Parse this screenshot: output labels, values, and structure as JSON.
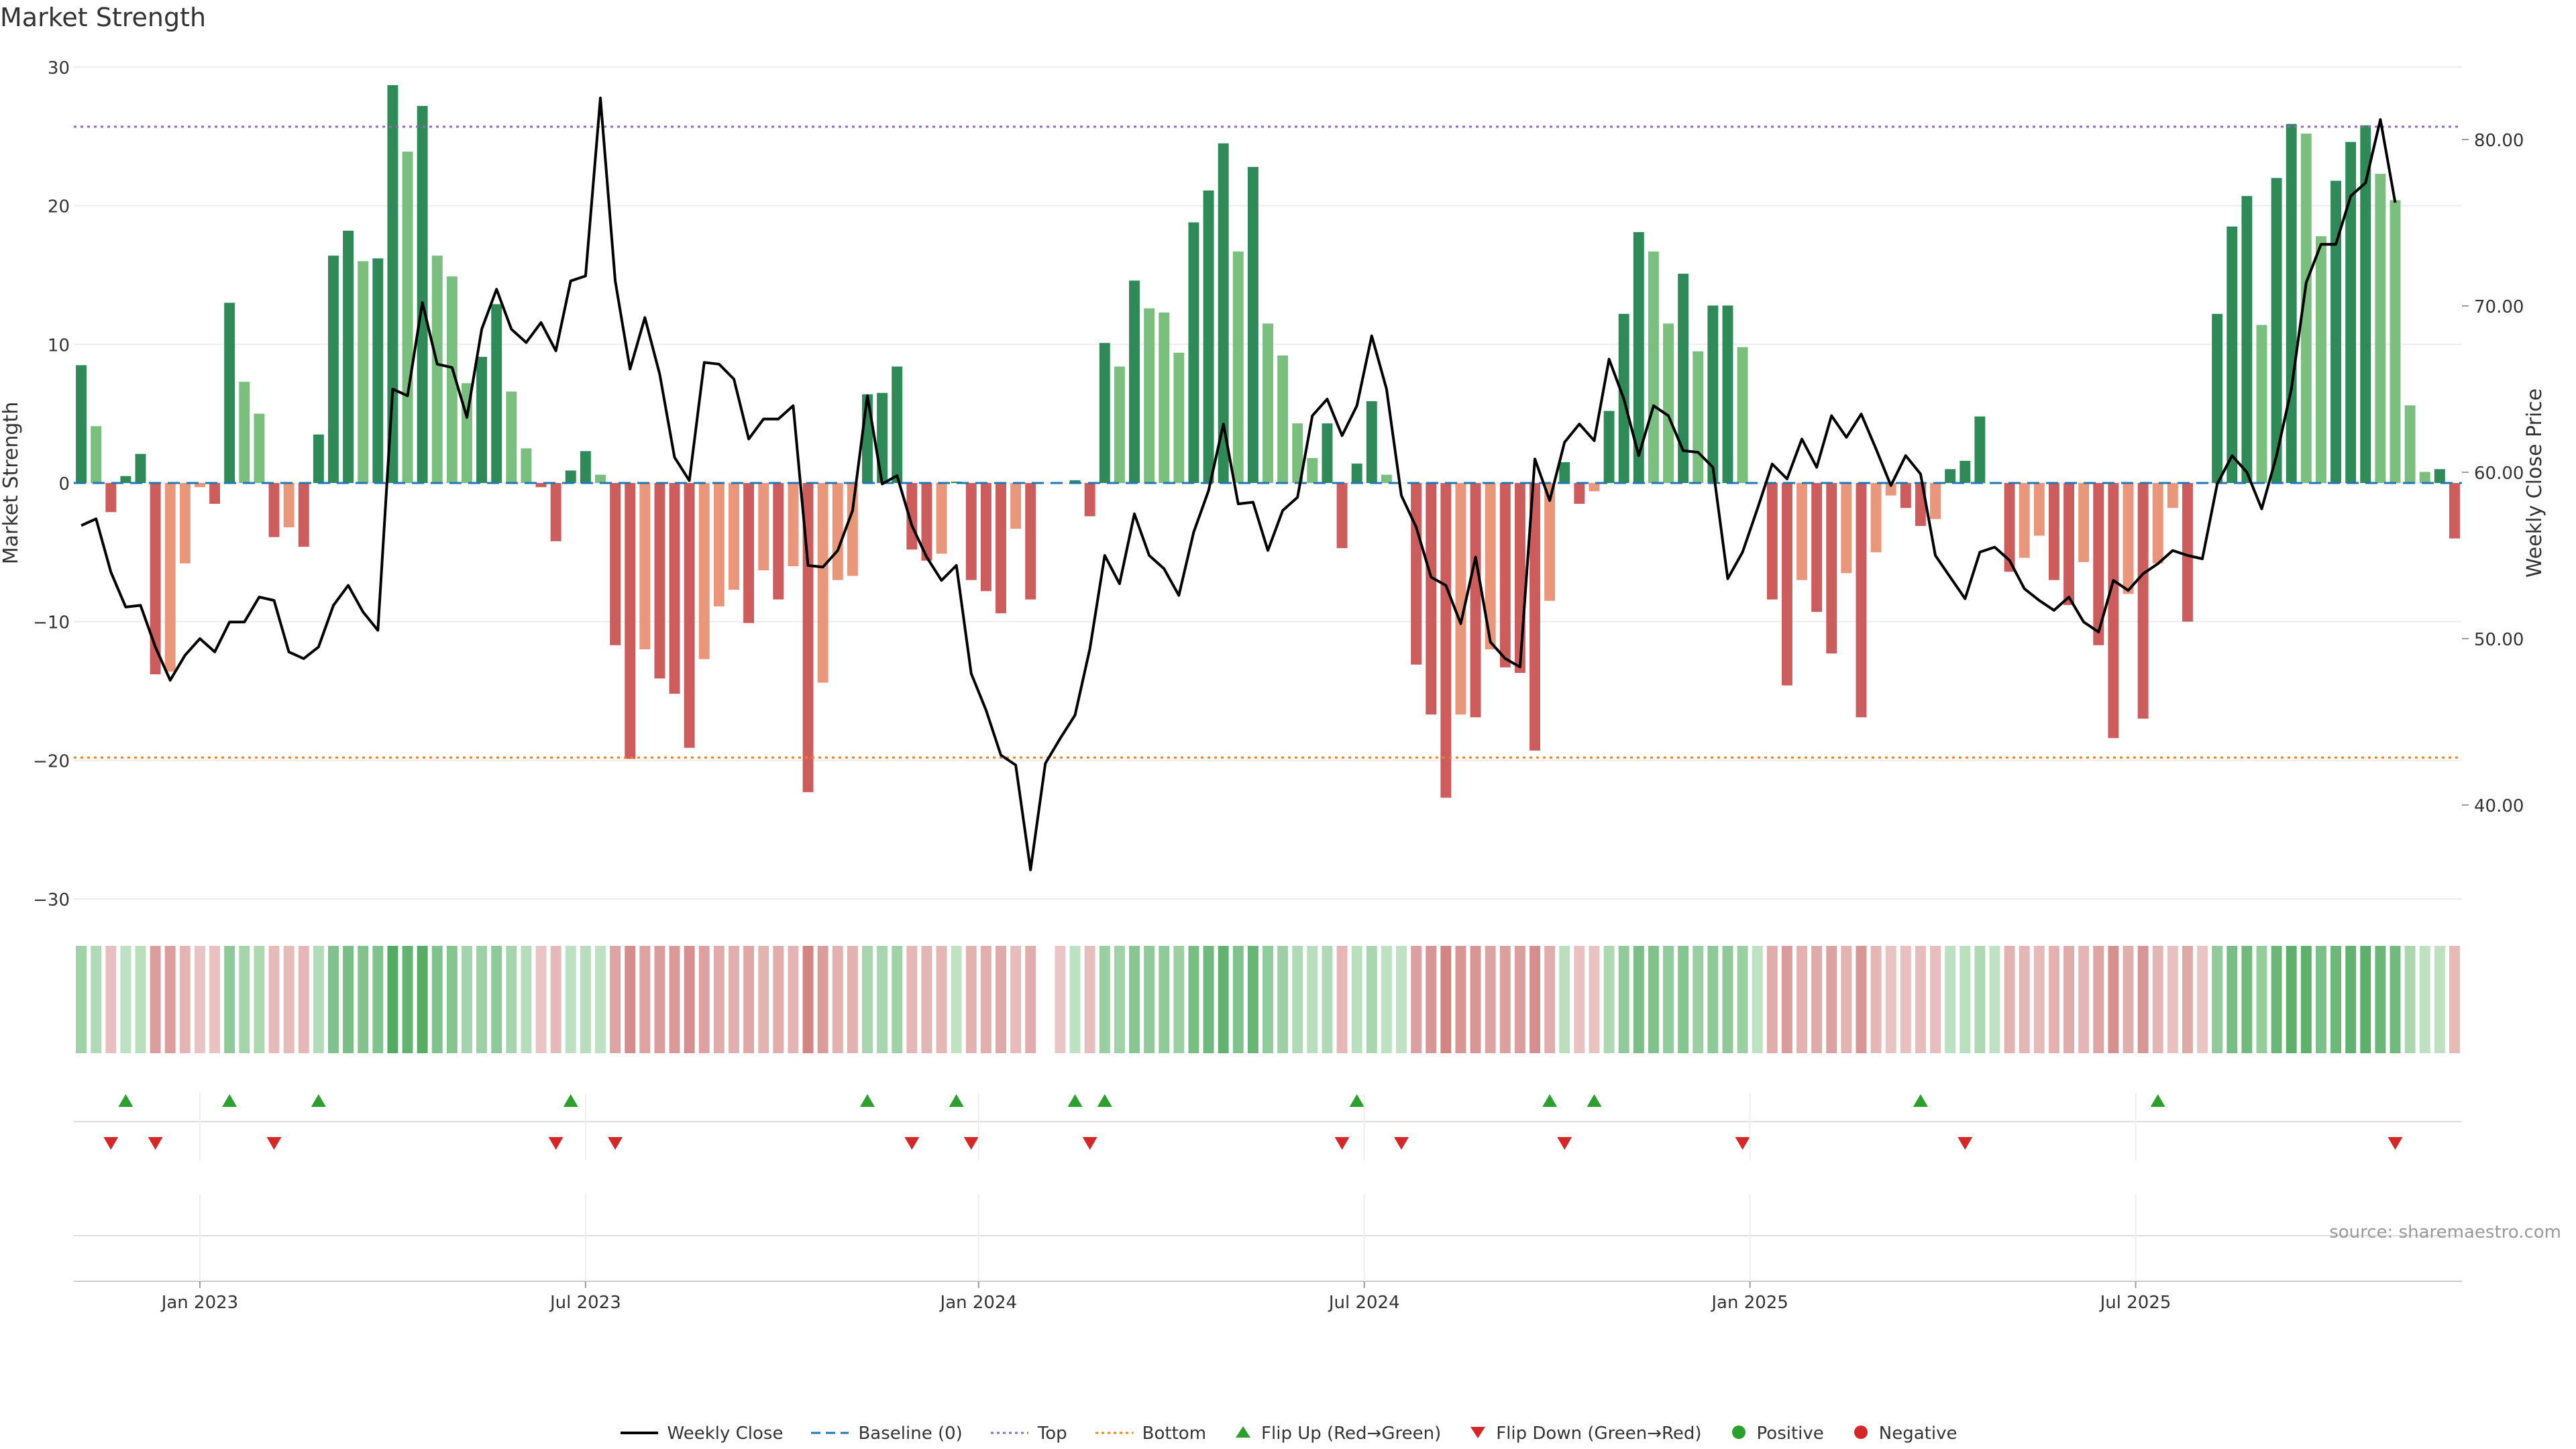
{
  "chart_data": {
    "type": "bar",
    "title": "Market Strength",
    "ylabel": "Market Strength",
    "y2label": "Weekly Close Price",
    "ylim": [
      -30,
      30
    ],
    "y2lim": [
      35,
      82
    ],
    "yticks": [
      "30",
      "20",
      "10",
      "0",
      "−10",
      "−20",
      "−30"
    ],
    "y2ticks": [
      "80.00",
      "70.00",
      "60.00",
      "50.00",
      "40.00"
    ],
    "top_line": 25.7,
    "bottom_line": -19.8,
    "x_labels": [
      "Jan 2023",
      "Jul 2023",
      "Jan 2024",
      "Jul 2024",
      "Jan 2025",
      "Jul 2025"
    ],
    "x_label_weeks": [
      8,
      34,
      60.5,
      86.5,
      112.5,
      138.5
    ],
    "source": "source: sharemaestro.com",
    "strength": [
      8.5,
      4.1,
      -2.1,
      0.5,
      2.1,
      -13.8,
      -13.6,
      -5.8,
      -0.3,
      -1.5,
      13.0,
      7.3,
      5.0,
      -3.9,
      -3.2,
      -4.6,
      3.5,
      16.4,
      18.2,
      16.0,
      16.2,
      28.7,
      23.9,
      27.2,
      16.4,
      14.9,
      7.2,
      9.1,
      12.9,
      6.6,
      2.5,
      -0.3,
      -4.2,
      0.9,
      2.3,
      0.6,
      -11.7,
      -19.9,
      -12.0,
      -14.1,
      -15.2,
      -19.1,
      -12.7,
      -8.9,
      -7.7,
      -10.1,
      -6.3,
      -8.4,
      -6.0,
      -22.3,
      -14.4,
      -7.0,
      -6.7,
      6.4,
      6.5,
      8.4,
      -4.8,
      -5.6,
      -5.1,
      0.1,
      -7.0,
      -7.8,
      -9.4,
      -3.3,
      -8.4,
      0.0,
      0.0,
      0.2,
      -2.4,
      10.1,
      8.4,
      14.6,
      12.6,
      12.3,
      9.4,
      18.8,
      21.1,
      24.5,
      16.7,
      22.8,
      11.5,
      9.2,
      4.3,
      1.8,
      4.3,
      -4.7,
      1.4,
      5.9,
      0.6,
      0.0,
      -13.1,
      -16.7,
      -22.7,
      -16.7,
      -16.9,
      -12.0,
      -13.3,
      -13.7,
      -19.3,
      -8.5,
      1.5,
      -1.5,
      -0.6,
      5.2,
      12.2,
      18.1,
      16.7,
      11.5,
      15.1,
      9.5,
      12.8,
      12.8,
      9.8,
      0.0,
      -8.4,
      -14.6,
      -7.0,
      -9.3,
      -12.3,
      -6.5,
      -16.9,
      -5.0,
      -0.9,
      -1.8,
      -3.1,
      -2.6,
      1.0,
      1.6,
      4.8,
      0.0,
      -6.4,
      -5.4,
      -3.8,
      -7.0,
      -8.8,
      -5.7,
      -11.7,
      -18.4,
      -8.0,
      -17.0,
      -5.8,
      -1.8,
      -10.0,
      0.0,
      12.2,
      18.5,
      20.7,
      11.4,
      22.0,
      25.9,
      25.2,
      17.8,
      21.8,
      24.6,
      25.8,
      22.3,
      20.4,
      5.6,
      0.8,
      1.0,
      -4.0
    ],
    "close": [
      56.8,
      57.2,
      54.0,
      51.9,
      52.0,
      49.5,
      47.5,
      49.0,
      50.0,
      49.2,
      51.0,
      51.0,
      52.5,
      52.3,
      49.2,
      48.8,
      49.5,
      52.0,
      53.2,
      51.6,
      50.5,
      65.0,
      64.6,
      70.2,
      66.5,
      66.3,
      63.3,
      68.6,
      71.0,
      68.6,
      67.8,
      69.0,
      67.3,
      71.5,
      71.8,
      82.5,
      71.5,
      66.2,
      69.3,
      65.9,
      60.9,
      59.5,
      66.6,
      66.5,
      65.6,
      62.0,
      63.2,
      63.2,
      64.0,
      54.4,
      54.3,
      55.3,
      57.7,
      64.6,
      59.3,
      59.8,
      56.8,
      54.9,
      53.5,
      54.4,
      47.9,
      45.7,
      43.0,
      42.4,
      36.1,
      42.5,
      44.0,
      45.4,
      49.4,
      55.0,
      53.3,
      57.5,
      55.0,
      54.2,
      52.6,
      56.4,
      58.9,
      62.9,
      58.1,
      58.2,
      55.3,
      57.7,
      58.5,
      63.4,
      64.4,
      62.2,
      64.0,
      68.2,
      65.0,
      58.6,
      56.7,
      53.7,
      53.2,
      50.9,
      54.9,
      49.8,
      48.8,
      48.3,
      60.8,
      58.3,
      61.8,
      62.9,
      61.9,
      66.8,
      64.4,
      61.0,
      64.0,
      63.4,
      61.3,
      61.2,
      60.3,
      53.6,
      55.2,
      57.8,
      60.5,
      59.6,
      62.0,
      60.3,
      63.4,
      62.1,
      63.5,
      61.4,
      59.2,
      61.0,
      59.9,
      55.0,
      53.7,
      52.4,
      55.2,
      55.5,
      54.7,
      53.0,
      52.3,
      51.7,
      52.5,
      51.0,
      50.4,
      53.5,
      52.9,
      53.9,
      54.5,
      55.3,
      55.0,
      54.8,
      59.3,
      61.0,
      60.0,
      57.8,
      61.0,
      65.0,
      71.4,
      73.7,
      73.7,
      76.6,
      77.4,
      81.2,
      76.2
    ],
    "flip_up_weeks": [
      3,
      10,
      16,
      33,
      53,
      59,
      67,
      69,
      86,
      99,
      102,
      124,
      140
    ],
    "flip_down_weeks": [
      2,
      5,
      13,
      32,
      36,
      56,
      60,
      68,
      85,
      89,
      100,
      112,
      127,
      156
    ],
    "strip_gap_weeks": [
      65
    ],
    "colors": {
      "strong_green": "#2e8b57",
      "light_green": "#7bbf7f",
      "strong_red": "#cd5c5c",
      "light_red": "#e9967a",
      "price_line": "#000000",
      "baseline": "#1f77b4",
      "top_line": "#9467bd",
      "bottom_line": "#ff7f0e",
      "flip_up": "#2ca02c",
      "flip_down": "#d62728",
      "positive": "#2ca02c",
      "negative": "#d62728"
    },
    "legend": [
      {
        "label": "Weekly Close",
        "marker": "line"
      },
      {
        "label": "Baseline (0)",
        "marker": "dash"
      },
      {
        "label": "Top",
        "marker": "dot-purple"
      },
      {
        "label": "Bottom",
        "marker": "dot-orange"
      },
      {
        "label": "Flip Up (Red→Green)",
        "marker": "triangle-up"
      },
      {
        "label": "Flip Down (Green→Red)",
        "marker": "triangle-down"
      },
      {
        "label": "Positive",
        "marker": "circle-green"
      },
      {
        "label": "Negative",
        "marker": "circle-red"
      }
    ]
  }
}
